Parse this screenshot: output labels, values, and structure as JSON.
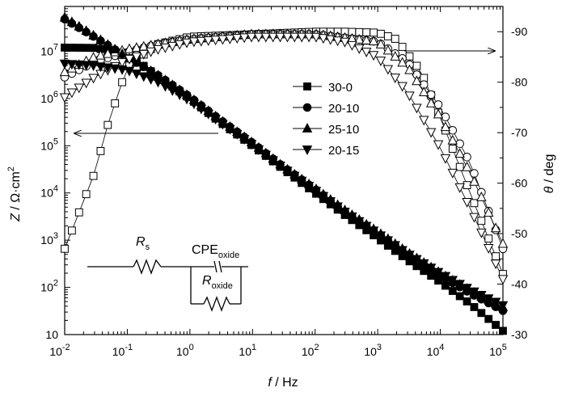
{
  "chart_data": {
    "type": "scatter",
    "xlabel": {
      "var": "f",
      "unit": " / Hz"
    },
    "ylabel_left": {
      "var": "Z",
      "sep": " / ",
      "unit": "Ω·cm",
      "sup": "2"
    },
    "ylabel_right": {
      "var": "θ",
      "unit": " / deg"
    },
    "x_scale": "log",
    "xlim": [
      0.01,
      100000
    ],
    "x_ticks": [
      {
        "b": "10",
        "e": "-2"
      },
      {
        "b": "10",
        "e": "-1"
      },
      {
        "b": "10",
        "e": "0"
      },
      {
        "b": "10",
        "e": "1"
      },
      {
        "b": "10",
        "e": "2"
      },
      {
        "b": "10",
        "e": "3"
      },
      {
        "b": "10",
        "e": "4"
      },
      {
        "b": "10",
        "e": "5"
      }
    ],
    "y_left_scale": "log",
    "y_left_ticks": [
      {
        "b": "10",
        "e": ""
      },
      {
        "b": "10",
        "e": "2"
      },
      {
        "b": "10",
        "e": "3"
      },
      {
        "b": "10",
        "e": "4"
      },
      {
        "b": "10",
        "e": "5"
      },
      {
        "b": "10",
        "e": "6"
      },
      {
        "b": "10",
        "e": "7"
      }
    ],
    "y_right_lim": [
      -30,
      -95
    ],
    "y_right_ticks": [
      "-30",
      "-40",
      "-50",
      "-60",
      "-70",
      "-80",
      "-90"
    ],
    "legend": {
      "placement": "center-right",
      "entries": [
        "30-0",
        "20-10",
        "25-10",
        "20-15"
      ]
    },
    "series": [
      {
        "name": "30-0",
        "marker": "square",
        "modulus": [
          [
            0.01,
            12000000
          ],
          [
            0.03,
            11800000
          ],
          [
            0.1,
            9000000
          ],
          [
            0.3,
            3000000
          ],
          [
            1,
            1000000
          ],
          [
            3,
            320000
          ],
          [
            10,
            100000
          ],
          [
            30,
            33000
          ],
          [
            100,
            10000
          ],
          [
            300,
            3400
          ],
          [
            1000,
            1100
          ],
          [
            3000,
            380
          ],
          [
            10000,
            130
          ],
          [
            30000,
            45
          ],
          [
            100000,
            12
          ]
        ],
        "phase": [
          [
            0.01,
            -47
          ],
          [
            0.03,
            -62
          ],
          [
            0.05,
            -72
          ],
          [
            0.1,
            -83
          ],
          [
            0.3,
            -87.5
          ],
          [
            1,
            -89
          ],
          [
            10,
            -89.5
          ],
          [
            100,
            -90
          ],
          [
            300,
            -90
          ],
          [
            1000,
            -89.8
          ],
          [
            2000,
            -88.5
          ],
          [
            5000,
            -82
          ],
          [
            10000,
            -73
          ],
          [
            30000,
            -58
          ],
          [
            100000,
            -42
          ]
        ]
      },
      {
        "name": "20-10",
        "marker": "circle",
        "modulus": [
          [
            0.01,
            48000000
          ],
          [
            0.03,
            20000000
          ],
          [
            0.1,
            7500000
          ],
          [
            0.3,
            3200000
          ],
          [
            1,
            1080000
          ],
          [
            3,
            360000
          ],
          [
            10,
            115000
          ],
          [
            30,
            37000
          ],
          [
            100,
            12000
          ],
          [
            300,
            4000
          ],
          [
            1000,
            1400
          ],
          [
            3000,
            500
          ],
          [
            10000,
            180
          ],
          [
            30000,
            75
          ],
          [
            100000,
            32
          ]
        ],
        "phase": [
          [
            0.01,
            -81
          ],
          [
            0.03,
            -84
          ],
          [
            0.1,
            -86
          ],
          [
            0.3,
            -87.5
          ],
          [
            1,
            -88.5
          ],
          [
            10,
            -89.5
          ],
          [
            100,
            -89.5
          ],
          [
            1000,
            -88
          ],
          [
            3000,
            -84
          ],
          [
            10000,
            -75
          ],
          [
            30000,
            -64
          ],
          [
            100000,
            -47
          ]
        ]
      },
      {
        "name": "25-10",
        "marker": "triangle-up",
        "modulus": [
          [
            0.01,
            52000000
          ],
          [
            0.03,
            21000000
          ],
          [
            0.1,
            7500000
          ],
          [
            0.3,
            3200000
          ],
          [
            1,
            1080000
          ],
          [
            3,
            360000
          ],
          [
            10,
            115000
          ],
          [
            30,
            37000
          ],
          [
            100,
            12500
          ],
          [
            300,
            4300
          ],
          [
            1000,
            1500
          ],
          [
            3000,
            550
          ],
          [
            10000,
            200
          ],
          [
            30000,
            85
          ],
          [
            100000,
            38
          ]
        ],
        "phase": [
          [
            0.01,
            -82
          ],
          [
            0.03,
            -85
          ],
          [
            0.1,
            -86.5
          ],
          [
            0.3,
            -87.5
          ],
          [
            1,
            -88.5
          ],
          [
            10,
            -89.5
          ],
          [
            100,
            -89.5
          ],
          [
            1000,
            -88
          ],
          [
            3000,
            -83
          ],
          [
            10000,
            -73
          ],
          [
            30000,
            -62
          ],
          [
            100000,
            -48
          ]
        ]
      },
      {
        "name": "20-15",
        "marker": "triangle-down",
        "modulus": [
          [
            0.01,
            5500000
          ],
          [
            0.03,
            5000000
          ],
          [
            0.1,
            4000000
          ],
          [
            0.3,
            2300000
          ],
          [
            1,
            900000
          ],
          [
            3,
            320000
          ],
          [
            10,
            105000
          ],
          [
            30,
            35000
          ],
          [
            100,
            11500
          ],
          [
            300,
            4000
          ],
          [
            1000,
            1400
          ],
          [
            3000,
            520
          ],
          [
            10000,
            200
          ],
          [
            30000,
            90
          ],
          [
            100000,
            42
          ]
        ],
        "phase": [
          [
            0.01,
            -77
          ],
          [
            0.03,
            -81
          ],
          [
            0.1,
            -84.5
          ],
          [
            0.3,
            -86.5
          ],
          [
            1,
            -88
          ],
          [
            10,
            -89
          ],
          [
            100,
            -89
          ],
          [
            300,
            -88
          ],
          [
            1000,
            -85
          ],
          [
            3000,
            -78
          ],
          [
            10000,
            -67
          ],
          [
            30000,
            -55
          ],
          [
            100000,
            -41
          ]
        ]
      }
    ],
    "annotations": {
      "arrows": [
        "left-axis",
        "right-axis"
      ],
      "circuit": {
        "rs": "R",
        "rs_sub": "s",
        "cpe": "CPE",
        "cpe_sub": "oxide",
        "rox": "R",
        "rox_sub": "oxide"
      }
    }
  }
}
